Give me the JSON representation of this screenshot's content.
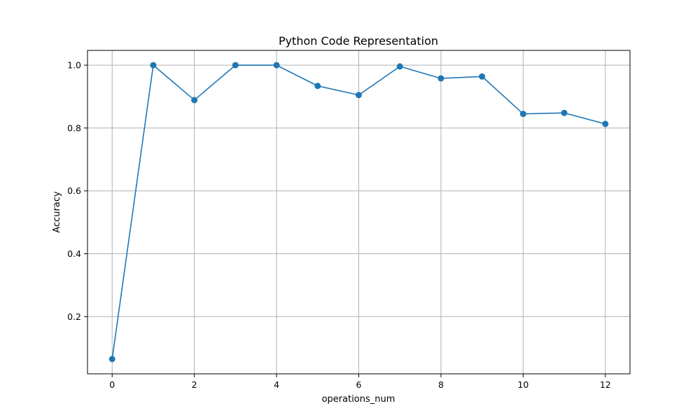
{
  "chart_data": {
    "type": "line",
    "title": "Python Code Representation",
    "xlabel": "operations_num",
    "ylabel": "Accuracy",
    "x": [
      0,
      1,
      2,
      3,
      4,
      5,
      6,
      7,
      8,
      9,
      10,
      11,
      12
    ],
    "series": [
      {
        "values": [
          0.065,
          1.0,
          0.889,
          1.0,
          1.0,
          0.934,
          0.905,
          0.996,
          0.958,
          0.964,
          0.845,
          0.848,
          0.813
        ],
        "color": "#1f77b4",
        "marker": "circle"
      }
    ],
    "xlim": [
      -0.6,
      12.6
    ],
    "ylim": [
      0.018,
      1.047
    ],
    "xticks": [
      0,
      2,
      4,
      6,
      8,
      10,
      12
    ],
    "yticks": [
      0.2,
      0.4,
      0.6,
      0.8,
      1.0
    ],
    "xtick_labels": [
      "0",
      "2",
      "4",
      "6",
      "8",
      "10",
      "12"
    ],
    "ytick_labels": [
      "0.2",
      "0.4",
      "0.6",
      "0.8",
      "1.0"
    ],
    "grid": true,
    "legend": "none"
  }
}
